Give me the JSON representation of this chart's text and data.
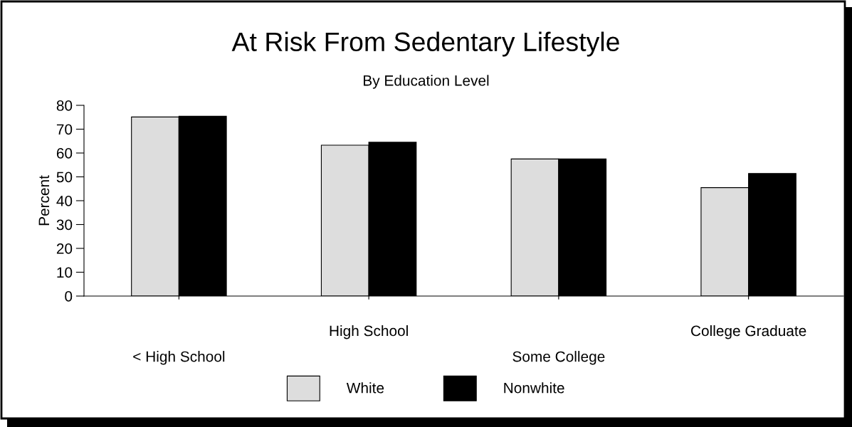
{
  "chart_data": {
    "type": "bar",
    "title": "At Risk From Sedentary Lifestyle",
    "subtitle": "By Education Level",
    "ylabel": "Percent",
    "categories": [
      "< High School",
      "High School",
      "Some College",
      "College Graduate"
    ],
    "series": [
      {
        "name": "White",
        "color": "#dddddd",
        "values": [
          75.1,
          63.3,
          57.5,
          45.5
        ]
      },
      {
        "name": "Nonwhite",
        "color": "#000000",
        "values": [
          75.4,
          64.5,
          57.5,
          51.4
        ]
      }
    ],
    "ylim": [
      0,
      80
    ],
    "yticks": [
      0,
      10,
      20,
      30,
      40,
      50,
      60,
      70,
      80
    ],
    "grid": false,
    "legend": "bottom"
  }
}
